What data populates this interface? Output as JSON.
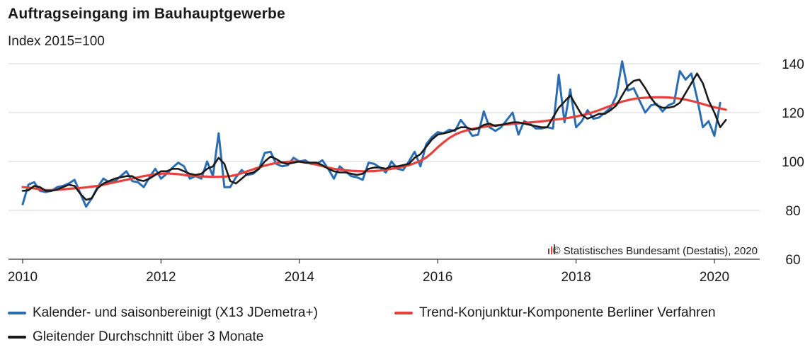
{
  "chart_data": {
    "type": "line",
    "title": "Auftragseingang im Bauhauptgewerbe",
    "subtitle": "Index 2015=100",
    "source": "© Statistisches Bundesamt (Destatis), 2020",
    "x_ticks": [
      "2010",
      "2012",
      "2014",
      "2016",
      "2018",
      "2020"
    ],
    "x_tick_values": [
      2010,
      2012,
      2014,
      2016,
      2018,
      2020
    ],
    "y_ticks": [
      "60",
      "80",
      "100",
      "120",
      "140"
    ],
    "y_tick_values": [
      60,
      80,
      100,
      120,
      140
    ],
    "ylim": [
      60,
      140
    ],
    "xlim": [
      2010,
      2020.5
    ],
    "grid": "horizontal",
    "legend_position": "bottom",
    "series": [
      {
        "name": "Kalender- und saisonbereinigt (X13 JDemetra+)",
        "color": "#2a6db2",
        "x_start": 2010.0,
        "x_step": 0.08333,
        "values": [
          82.5,
          90.5,
          91.5,
          88,
          87.5,
          88,
          89.5,
          90,
          91,
          92.5,
          87,
          81.5,
          85,
          89.5,
          93,
          91.5,
          92,
          94,
          96,
          92,
          91.5,
          89.5,
          93.5,
          97,
          93,
          95,
          97.5,
          99.5,
          98,
          93,
          94,
          93,
          100,
          94,
          111.5,
          89.5,
          89.5,
          93.5,
          96.5,
          94.5,
          95,
          97,
          103.5,
          104,
          99,
          98,
          98.5,
          101.5,
          100,
          100.5,
          99,
          99,
          100.5,
          97,
          93,
          98,
          96,
          94,
          93.5,
          92.5,
          99.5,
          99,
          97.5,
          95.5,
          100,
          97,
          96.5,
          100,
          104,
          98,
          107,
          110,
          112,
          111.5,
          113,
          112.5,
          117,
          114,
          110.5,
          111,
          120.5,
          114,
          112.5,
          114,
          117,
          120,
          111,
          116.5,
          115.5,
          113.5,
          113.5,
          114,
          113.5,
          135.5,
          116,
          129.5,
          114,
          116.5,
          121,
          117.5,
          118,
          120,
          122,
          127,
          141,
          129,
          130,
          125,
          120,
          123,
          123.5,
          120.5,
          123,
          124,
          137,
          133.5,
          136,
          126,
          114,
          116.5,
          110.5,
          124
        ]
      },
      {
        "name": "Trend-Konjunktur-Komponente Berliner Verfahren",
        "color": "#e8413d",
        "x_start": 2010.0,
        "x_step": 0.08333,
        "values": [
          89.5,
          89.3,
          89,
          88.6,
          88.3,
          88.3,
          88.4,
          88.6,
          88.8,
          89,
          89.2,
          89.4,
          89.7,
          90,
          90.5,
          91,
          91.5,
          92,
          92.5,
          93,
          93.5,
          94,
          94.4,
          94.8,
          95,
          95.1,
          95,
          94.8,
          94.5,
          94.2,
          94,
          93.9,
          93.8,
          93.7,
          93.7,
          93.8,
          94,
          94.5,
          95.2,
          96,
          96.8,
          97.6,
          98.3,
          98.9,
          99.4,
          99.7,
          99.9,
          100,
          99.9,
          99.6,
          99.2,
          98.7,
          98.1,
          97.5,
          97,
          96.7,
          96.4,
          96.2,
          96.1,
          96,
          96,
          96.1,
          96.3,
          96.6,
          97,
          97.4,
          97.9,
          98.5,
          99.3,
          100.3,
          101.6,
          103.5,
          105.8,
          107.8,
          109.6,
          111,
          112,
          112.7,
          113.3,
          113.8,
          114.2,
          114.5,
          114.8,
          115,
          115.2,
          115.4,
          115.6,
          115.8,
          116,
          116.2,
          116.4,
          116.7,
          117,
          117.3,
          117.6,
          118,
          118.4,
          118.9,
          119.5,
          120.2,
          121,
          121.9,
          122.8,
          123.7,
          124.5,
          125.1,
          125.6,
          125.9,
          126.1,
          126.2,
          126.3,
          126.3,
          126.2,
          126,
          125.7,
          125.3,
          124.8,
          124.2,
          123.5,
          122.8,
          122.2,
          121.7,
          121.2
        ]
      },
      {
        "name": "Gleitender Durchschnitt über 3 Monate",
        "color": "#1a1a1a",
        "x_start": 2010.0,
        "x_step": 0.08333,
        "values": [
          88,
          88.2,
          90,
          89.5,
          88,
          88,
          88.5,
          89.5,
          90.5,
          90,
          86.8,
          84.3,
          85,
          89,
          91,
          92,
          93,
          93.5,
          94,
          94,
          92.5,
          92,
          93,
          94.5,
          96,
          96,
          97,
          97,
          96,
          95,
          94.5,
          95,
          97,
          98,
          101.5,
          99,
          92,
          91,
          93,
          95,
          95.5,
          97,
          100,
          102,
          101,
          99.5,
          99,
          99.5,
          100,
          99.5,
          99.5,
          99.5,
          98.5,
          97,
          96,
          95.5,
          95.5,
          95,
          94.5,
          95,
          97,
          97.5,
          97.5,
          97,
          98,
          98,
          98.5,
          99,
          101.5,
          103,
          106,
          109,
          111,
          111.5,
          112,
          113,
          114,
          114,
          113,
          113.5,
          115,
          115.5,
          114.5,
          115,
          115.5,
          116,
          116,
          115.5,
          115,
          114.5,
          114,
          114,
          118,
          122,
          124.5,
          127,
          123,
          119,
          117.5,
          118.5,
          119.5,
          119.5,
          121,
          123,
          127,
          131,
          133,
          133.5,
          130,
          126,
          123,
          122,
          122,
          122.5,
          124,
          128,
          132,
          136,
          132,
          125,
          120,
          114,
          117
        ]
      }
    ]
  },
  "legend": [
    "Kalender- und saisonbereinigt (X13 JDemetra+)",
    "Trend-Konjunktur-Komponente Berliner Verfahren",
    "Gleitender Durchschnitt über 3 Monate"
  ]
}
